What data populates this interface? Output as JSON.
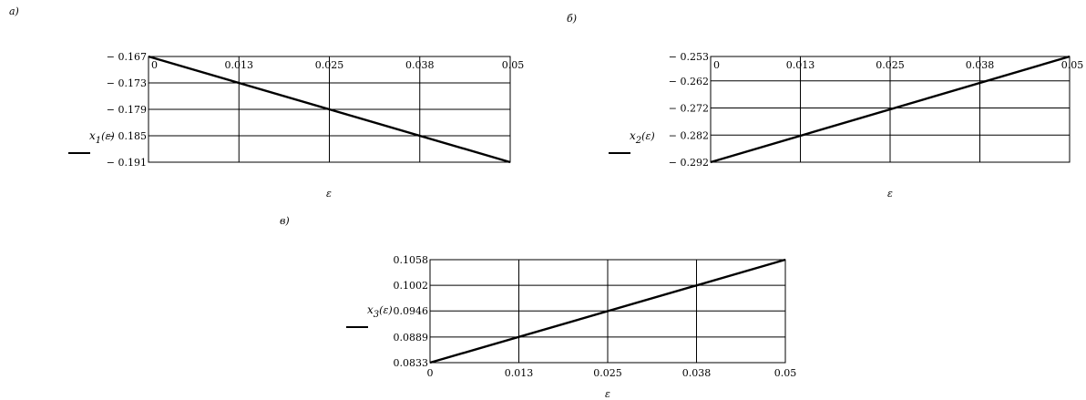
{
  "chart_data": [
    {
      "type": "line",
      "panel_label": "а)",
      "ylabel_var": "x",
      "ylabel_sub": "1",
      "ylabel_arg": "(ε)",
      "xlabel": "ε",
      "xlim": [
        0,
        0.05
      ],
      "ylim": [
        -0.191,
        -0.167
      ],
      "x_ticks": [
        "0",
        "0.013",
        "0.025",
        "0.038",
        "0.05"
      ],
      "y_ticks": [
        "− 0.167",
        "− 0.173",
        "− 0.179",
        "− 0.185",
        "− 0.191"
      ],
      "y_tick_values": [
        -0.167,
        -0.173,
        -0.179,
        -0.185,
        -0.191
      ],
      "x_tick_position": "top",
      "grid": true,
      "x": [
        0,
        0.05
      ],
      "y": [
        -0.167,
        -0.191
      ]
    },
    {
      "type": "line",
      "panel_label": "б)",
      "ylabel_var": "x",
      "ylabel_sub": "2",
      "ylabel_arg": "(ε)",
      "xlabel": "ε",
      "xlim": [
        0,
        0.05
      ],
      "ylim": [
        -0.292,
        -0.253
      ],
      "x_ticks": [
        "0",
        "0.013",
        "0.025",
        "0.038",
        "0.05"
      ],
      "y_ticks": [
        "− 0.253",
        "− 0.262",
        "− 0.272",
        "− 0.282",
        "− 0.292"
      ],
      "y_tick_values": [
        -0.253,
        -0.262,
        -0.272,
        -0.282,
        -0.292
      ],
      "x_tick_position": "top",
      "grid": true,
      "x": [
        0,
        0.05
      ],
      "y": [
        -0.292,
        -0.253
      ]
    },
    {
      "type": "line",
      "panel_label": "в)",
      "ylabel_var": "x",
      "ylabel_sub": "3",
      "ylabel_arg": "(ε)",
      "xlabel": "ε",
      "xlim": [
        0,
        0.05
      ],
      "ylim": [
        0.0833,
        0.1058
      ],
      "x_ticks": [
        "0",
        "0.013",
        "0.025",
        "0.038",
        "0.05"
      ],
      "y_ticks": [
        "0.1058",
        "0.1002",
        "0.0946",
        "0.0889",
        "0.0833"
      ],
      "y_tick_values": [
        0.1058,
        0.1002,
        0.0946,
        0.0889,
        0.0833
      ],
      "x_tick_position": "bottom",
      "grid": true,
      "x": [
        0,
        0.05
      ],
      "y": [
        0.0833,
        0.1058
      ]
    }
  ]
}
